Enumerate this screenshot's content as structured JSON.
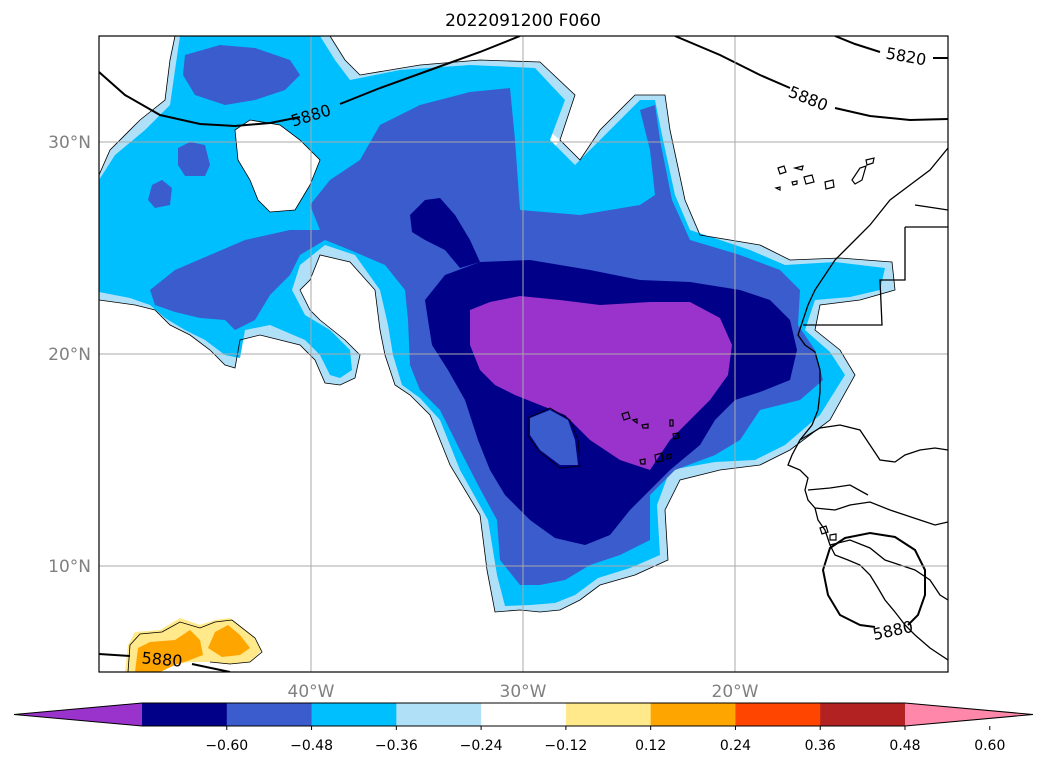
{
  "title": "2022091200 F060",
  "axes": {
    "lat_labels": [
      {
        "text": "30°N",
        "lat": 30
      },
      {
        "text": "20°N",
        "lat": 20
      },
      {
        "text": "10°N",
        "lat": 10
      }
    ],
    "lon_labels": [
      {
        "text": "40°W",
        "lon": -40
      },
      {
        "text": "30°W",
        "lon": -30
      },
      {
        "text": "20°W",
        "lon": -20
      }
    ],
    "lon_range": [
      -50,
      -10
    ],
    "lat_range": [
      5,
      35
    ],
    "grid": true
  },
  "contours": {
    "labels": [
      "5820",
      "5880",
      "5880",
      "5880",
      "5880"
    ]
  },
  "colorbar": {
    "ticks": [
      "−0.60",
      "−0.48",
      "−0.36",
      "−0.24",
      "−0.12",
      "0.12",
      "0.24",
      "0.36",
      "0.48",
      "0.60"
    ],
    "colors": [
      "#9933cc",
      "#000088",
      "#3a5ccc",
      "#00bfff",
      "#b0e0f8",
      "#ffffff",
      "#ffe98a",
      "#ffa500",
      "#ff4500",
      "#b22222",
      "#ff88aa"
    ],
    "extend": "both"
  },
  "field_colors": {
    "c_n060": "#9933cc",
    "c_n048": "#000088",
    "c_n036": "#3a5ccc",
    "c_n024": "#00bfff",
    "c_n012": "#b0e0f8",
    "c_p024": "#ffe98a",
    "c_p036": "#ffa500"
  }
}
